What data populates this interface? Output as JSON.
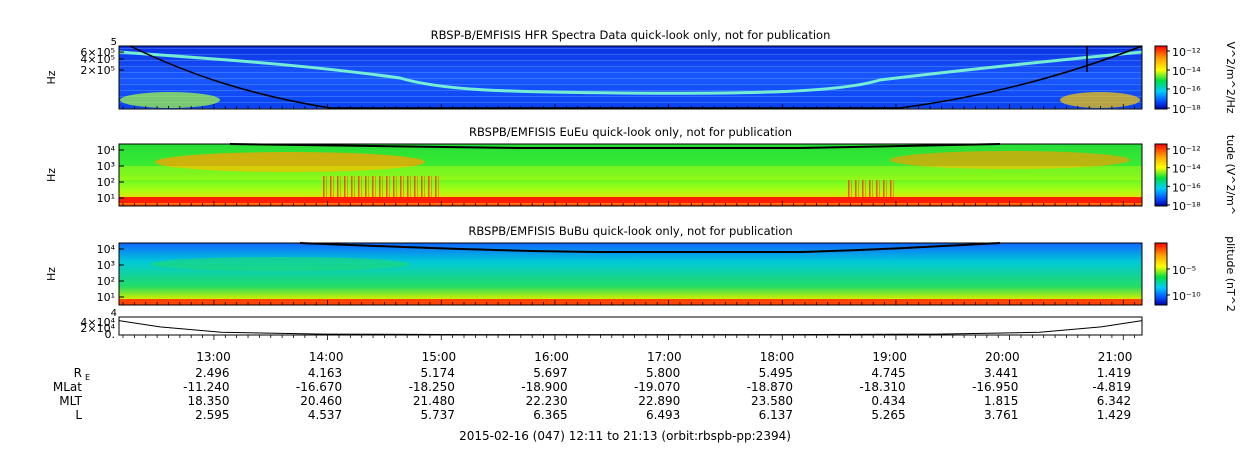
{
  "chart_data": [
    {
      "type": "heatmap",
      "title": "RBSP-B/EMFISIS  HFR Spectra Data quick-look only, not for publication",
      "ylabel": "Hz",
      "yticks": [
        "6×10⁵",
        "4×10⁵",
        "2×10⁵"
      ],
      "ytop": "5",
      "colorbar_label": "V^2/m^2/Hz",
      "colorbar_ticks": [
        "10⁻¹²",
        "10⁻¹⁴",
        "10⁻¹⁶",
        "10⁻¹⁸"
      ],
      "xrange": [
        "12:11",
        "21:13"
      ]
    },
    {
      "type": "heatmap",
      "title": "RBSPB/EMFISIS  EuEu quick-look only, not for publication",
      "ylabel": "Hz",
      "yticks": [
        "10⁴",
        "10³",
        "10²",
        "10¹"
      ],
      "colorbar_label": "tude (V^2/m^",
      "colorbar_ticks": [
        "10⁻¹²",
        "10⁻¹⁴",
        "10⁻¹⁶",
        "10⁻¹⁸"
      ]
    },
    {
      "type": "heatmap",
      "title": "RBSPB/EMFISIS  BuBu quick-look only, not for publication",
      "ylabel": "Hz",
      "yticks": [
        "10⁴",
        "10³",
        "10²",
        "10¹"
      ],
      "colorbar_label": "plitude (nT^2",
      "colorbar_ticks": [
        "10⁻⁵",
        "10⁻¹⁰"
      ]
    },
    {
      "type": "line",
      "yticks": [
        "4×10⁴",
        "2×10⁴",
        "0."
      ],
      "ytop": "4",
      "x": [
        0,
        0.04,
        0.1,
        0.2,
        0.35,
        0.5,
        0.65,
        0.8,
        0.9,
        0.96,
        1
      ],
      "y": [
        0.8,
        0.45,
        0.15,
        0.05,
        0.02,
        0.02,
        0.02,
        0.05,
        0.15,
        0.45,
        0.8
      ]
    }
  ],
  "time_axis": {
    "ticks": [
      "13:00",
      "14:00",
      "15:00",
      "16:00",
      "17:00",
      "18:00",
      "19:00",
      "20:00",
      "21:00"
    ]
  },
  "ephemeris": {
    "rows": [
      {
        "label": "R",
        "sub": "E",
        "values": [
          "2.496",
          "4.163",
          "5.174",
          "5.697",
          "5.800",
          "5.495",
          "4.745",
          "3.441",
          "1.419"
        ]
      },
      {
        "label": "MLat",
        "values": [
          "-11.240",
          "-16.670",
          "-18.250",
          "-18.900",
          "-19.070",
          "-18.870",
          "-18.310",
          "-16.950",
          "-4.819"
        ]
      },
      {
        "label": "MLT",
        "values": [
          "18.350",
          "20.460",
          "21.480",
          "22.230",
          "22.890",
          "23.580",
          "0.434",
          "1.815",
          "6.342"
        ]
      },
      {
        "label": "L",
        "values": [
          "2.595",
          "4.537",
          "5.737",
          "6.365",
          "6.493",
          "6.137",
          "5.265",
          "3.761",
          "1.429"
        ]
      }
    ]
  },
  "footer": "2015-02-16 (047) 12:11 to 21:13 (orbit:rbspb-pp:2394)"
}
